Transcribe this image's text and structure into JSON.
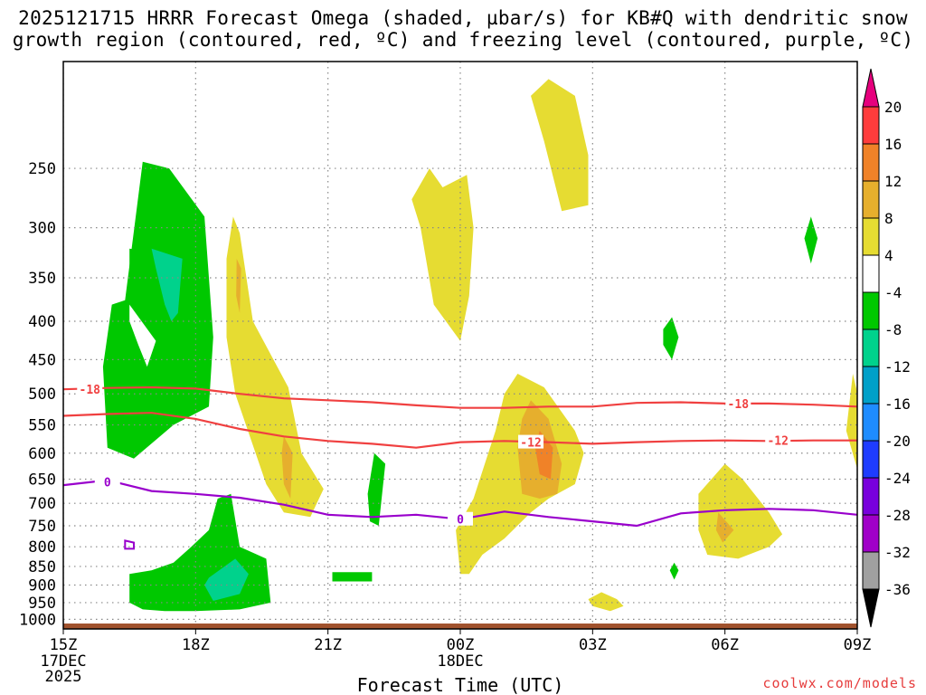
{
  "title": {
    "line1": "2025121715 HRRR Forecast Omega (shaded, µbar/s) for KB#Q with dendritic snow",
    "line2": "growth region (contoured, red, ºC) and freezing level (contoured, purple, ºC)"
  },
  "credit": "coolwx.com/models",
  "colors": {
    "frame": "#000000",
    "grid": "#888888",
    "ground": "#a0522d",
    "dendritic_contour": "#f04040",
    "freezing_contour": "#9900cc"
  },
  "chart_data": {
    "type": "heatmap",
    "xlabel": "Forecast Time (UTC)",
    "ylabel": "",
    "x_ticks": [
      {
        "hours": 0,
        "label": "15Z",
        "sub": [
          "17DEC",
          "2025"
        ]
      },
      {
        "hours": 3,
        "label": "18Z",
        "sub": []
      },
      {
        "hours": 6,
        "label": "21Z",
        "sub": []
      },
      {
        "hours": 9,
        "label": "00Z",
        "sub": [
          "18DEC"
        ]
      },
      {
        "hours": 12,
        "label": "03Z",
        "sub": []
      },
      {
        "hours": 15,
        "label": "06Z",
        "sub": []
      },
      {
        "hours": 18,
        "label": "09Z",
        "sub": []
      }
    ],
    "xlim_hours": [
      0,
      18
    ],
    "y_ticks": [
      250,
      300,
      350,
      400,
      450,
      500,
      550,
      600,
      650,
      700,
      750,
      800,
      850,
      900,
      950,
      1000
    ],
    "ylim_hPa": [
      1030,
      180
    ],
    "y_scale": "log-pressure",
    "grid": true,
    "colorbar": {
      "labels": [
        "20",
        "16",
        "12",
        "8",
        "4",
        "-4",
        "-8",
        "-12",
        "-16",
        "-20",
        "-24",
        "-28",
        "-32",
        "-36"
      ],
      "bins": [
        {
          "from": 16,
          "to": 20,
          "color": "#ff3c3c"
        },
        {
          "from": 12,
          "to": 16,
          "color": "#f08228"
        },
        {
          "from": 8,
          "to": 12,
          "color": "#e6af2d"
        },
        {
          "from": 4,
          "to": 8,
          "color": "#e6dc32"
        },
        {
          "from": -4,
          "to": 4,
          "color": "#ffffff"
        },
        {
          "from": -8,
          "to": -4,
          "color": "#00c800"
        },
        {
          "from": -12,
          "to": -8,
          "color": "#00d28c"
        },
        {
          "from": -16,
          "to": -12,
          "color": "#00a0c8"
        },
        {
          "from": -20,
          "to": -16,
          "color": "#1e8cff"
        },
        {
          "from": -24,
          "to": -20,
          "color": "#1e3cff"
        },
        {
          "from": -28,
          "to": -24,
          "color": "#7800dc"
        },
        {
          "from": -32,
          "to": -28,
          "color": "#a000c8"
        },
        {
          "from": -36,
          "to": -32,
          "color": "#a0a0a0"
        }
      ],
      "over_color": "#e6007d",
      "under_color": "#000000"
    },
    "contours": [
      {
        "value": -18,
        "label": "-18",
        "color": "#f04040",
        "points": [
          [
            0,
            493
          ],
          [
            1,
            491
          ],
          [
            2,
            490
          ],
          [
            3,
            492
          ],
          [
            4,
            500
          ],
          [
            5,
            507
          ],
          [
            6,
            510
          ],
          [
            7,
            513
          ],
          [
            8,
            518
          ],
          [
            9,
            522
          ],
          [
            10,
            522
          ],
          [
            11,
            520
          ],
          [
            12,
            520
          ],
          [
            13,
            514
          ],
          [
            14,
            513
          ],
          [
            15,
            515
          ],
          [
            16,
            515
          ],
          [
            17,
            517
          ],
          [
            18,
            520
          ]
        ],
        "label_at": [
          [
            0.6,
            493
          ],
          [
            15.3,
            515
          ]
        ]
      },
      {
        "value": -12,
        "label": "-12",
        "color": "#f04040",
        "points": [
          [
            0,
            535
          ],
          [
            1,
            532
          ],
          [
            2,
            530
          ],
          [
            3,
            540
          ],
          [
            4,
            557
          ],
          [
            5,
            570
          ],
          [
            6,
            578
          ],
          [
            7,
            583
          ],
          [
            8,
            590
          ],
          [
            9,
            580
          ],
          [
            10,
            578
          ],
          [
            11,
            580
          ],
          [
            12,
            583
          ],
          [
            13,
            580
          ],
          [
            14,
            578
          ],
          [
            15,
            577
          ],
          [
            16,
            578
          ],
          [
            17,
            577
          ],
          [
            18,
            577
          ]
        ],
        "label_at": [
          [
            10.6,
            580
          ],
          [
            16.2,
            577
          ]
        ]
      },
      {
        "value": 0,
        "label": "0",
        "color": "#9900cc",
        "points": [
          [
            0,
            662
          ],
          [
            1,
            652
          ],
          [
            2,
            674
          ],
          [
            3,
            680
          ],
          [
            4,
            688
          ],
          [
            5,
            703
          ],
          [
            6,
            725
          ],
          [
            7,
            730
          ],
          [
            8,
            725
          ],
          [
            9,
            735
          ],
          [
            10,
            718
          ],
          [
            11,
            730
          ],
          [
            12,
            740
          ],
          [
            13,
            750
          ],
          [
            14,
            722
          ],
          [
            15,
            715
          ],
          [
            16,
            712
          ],
          [
            17,
            715
          ],
          [
            18,
            725
          ]
        ],
        "label_at": [
          [
            1,
            655
          ],
          [
            9,
            735
          ]
        ]
      }
    ],
    "omega_regions": [
      {
        "value": -6,
        "color": "#00c800",
        "points": [
          [
            1.4,
            375
          ],
          [
            1.8,
            245
          ],
          [
            2.4,
            250
          ],
          [
            3.2,
            290
          ],
          [
            3.4,
            420
          ],
          [
            3.3,
            520
          ],
          [
            2.5,
            550
          ],
          [
            1.6,
            610
          ],
          [
            1.0,
            590
          ],
          [
            0.9,
            460
          ],
          [
            1.1,
            380
          ]
        ]
      },
      {
        "value": -6,
        "color": "#00c800",
        "points": [
          [
            1.5,
            320
          ],
          [
            3.0,
            330
          ],
          [
            2.9,
            450
          ],
          [
            2.5,
            470
          ],
          [
            2.2,
            440
          ],
          [
            1.9,
            430
          ],
          [
            1.6,
            420
          ],
          [
            1.5,
            380
          ]
        ]
      },
      {
        "value": -10,
        "color": "#00d28c",
        "points": [
          [
            2.0,
            320
          ],
          [
            2.7,
            330
          ],
          [
            2.6,
            390
          ],
          [
            2.45,
            400
          ],
          [
            2.3,
            380
          ],
          [
            2.1,
            340
          ]
        ]
      },
      {
        "value": 0,
        "color": "#ffffff",
        "points": [
          [
            1.5,
            380
          ],
          [
            2.1,
            425
          ],
          [
            1.9,
            460
          ],
          [
            1.7,
            430
          ],
          [
            1.5,
            400
          ]
        ]
      },
      {
        "value": -6,
        "color": "#00c800",
        "points": [
          [
            1.5,
            870
          ],
          [
            2.0,
            860
          ],
          [
            2.5,
            840
          ],
          [
            2.9,
            800
          ],
          [
            3.3,
            760
          ],
          [
            3.5,
            690
          ],
          [
            3.8,
            680
          ],
          [
            4.0,
            800
          ],
          [
            4.6,
            830
          ],
          [
            4.7,
            950
          ],
          [
            4.0,
            970
          ],
          [
            3.0,
            975
          ],
          [
            2.3,
            975
          ],
          [
            1.8,
            970
          ],
          [
            1.5,
            950
          ]
        ]
      },
      {
        "value": -10,
        "color": "#00d28c",
        "points": [
          [
            3.3,
            880
          ],
          [
            3.9,
            830
          ],
          [
            4.2,
            870
          ],
          [
            4.0,
            925
          ],
          [
            3.4,
            945
          ],
          [
            3.2,
            900
          ]
        ]
      },
      {
        "value": 6,
        "color": "#e6dc32",
        "points": [
          [
            3.85,
            290
          ],
          [
            4.0,
            305
          ],
          [
            4.3,
            400
          ],
          [
            5.1,
            490
          ],
          [
            5.4,
            600
          ],
          [
            5.9,
            670
          ],
          [
            5.6,
            730
          ],
          [
            5.0,
            720
          ],
          [
            4.6,
            660
          ],
          [
            3.9,
            500
          ],
          [
            3.7,
            420
          ],
          [
            3.7,
            330
          ]
        ]
      },
      {
        "value": 10,
        "color": "#e6af2d",
        "points": [
          [
            3.93,
            330
          ],
          [
            4.03,
            340
          ],
          [
            4.0,
            390
          ],
          [
            3.92,
            370
          ]
        ]
      },
      {
        "value": 10,
        "color": "#e6af2d",
        "points": [
          [
            5.0,
            570
          ],
          [
            5.2,
            600
          ],
          [
            5.15,
            690
          ],
          [
            5.0,
            660
          ],
          [
            4.95,
            600
          ]
        ]
      },
      {
        "value": 6,
        "color": "#e6dc32",
        "points": [
          [
            8.3,
            250
          ],
          [
            8.6,
            265
          ],
          [
            9.15,
            255
          ],
          [
            9.3,
            300
          ],
          [
            9.2,
            370
          ],
          [
            9.0,
            425
          ],
          [
            8.4,
            380
          ],
          [
            8.1,
            300
          ],
          [
            7.9,
            275
          ]
        ]
      },
      {
        "value": 6,
        "color": "#e6dc32",
        "points": [
          [
            11.0,
            190
          ],
          [
            11.6,
            200
          ],
          [
            11.9,
            240
          ],
          [
            11.9,
            280
          ],
          [
            11.3,
            285
          ],
          [
            10.9,
            230
          ],
          [
            10.6,
            200
          ]
        ]
      },
      {
        "value": 6,
        "color": "#e6dc32",
        "points": [
          [
            10.3,
            470
          ],
          [
            10.9,
            490
          ],
          [
            11.6,
            560
          ],
          [
            11.8,
            600
          ],
          [
            11.6,
            660
          ],
          [
            11.0,
            690
          ],
          [
            10.6,
            720
          ],
          [
            10.0,
            780
          ],
          [
            9.5,
            820
          ],
          [
            9.2,
            870
          ],
          [
            9.0,
            870
          ],
          [
            8.9,
            760
          ],
          [
            9.3,
            690
          ],
          [
            9.8,
            560
          ],
          [
            10.0,
            500
          ]
        ]
      },
      {
        "value": 10,
        "color": "#e6af2d",
        "points": [
          [
            10.6,
            510
          ],
          [
            11.0,
            540
          ],
          [
            11.3,
            620
          ],
          [
            11.2,
            680
          ],
          [
            10.8,
            690
          ],
          [
            10.4,
            680
          ],
          [
            10.3,
            590
          ],
          [
            10.4,
            540
          ]
        ]
      },
      {
        "value": 14,
        "color": "#f08228",
        "points": [
          [
            10.8,
            560
          ],
          [
            11.1,
            590
          ],
          [
            11.05,
            650
          ],
          [
            10.8,
            640
          ],
          [
            10.7,
            590
          ]
        ]
      },
      {
        "value": -6,
        "color": "#00c800",
        "points": [
          [
            7.05,
            600
          ],
          [
            7.3,
            620
          ],
          [
            7.15,
            750
          ],
          [
            6.95,
            740
          ],
          [
            6.9,
            680
          ]
        ]
      },
      {
        "value": -6,
        "color": "#00c800",
        "points": [
          [
            6.1,
            865
          ],
          [
            7.0,
            865
          ],
          [
            7.0,
            890
          ],
          [
            6.1,
            890
          ]
        ]
      },
      {
        "value": 6,
        "color": "#e6dc32",
        "points": [
          [
            15.0,
            620
          ],
          [
            15.4,
            650
          ],
          [
            16.0,
            720
          ],
          [
            16.3,
            770
          ],
          [
            16.0,
            800
          ],
          [
            15.3,
            830
          ],
          [
            14.6,
            820
          ],
          [
            14.4,
            760
          ],
          [
            14.4,
            680
          ]
        ]
      },
      {
        "value": 10,
        "color": "#e6af2d",
        "points": [
          [
            14.85,
            720
          ],
          [
            15.2,
            760
          ],
          [
            14.95,
            790
          ],
          [
            14.8,
            760
          ]
        ]
      },
      {
        "value": 6,
        "color": "#e6dc32",
        "points": [
          [
            12.2,
            920
          ],
          [
            12.55,
            940
          ],
          [
            12.7,
            960
          ],
          [
            12.4,
            975
          ],
          [
            12.0,
            960
          ],
          [
            11.9,
            940
          ]
        ]
      },
      {
        "value": -6,
        "color": "#00c800",
        "points": [
          [
            13.6,
            410
          ],
          [
            13.8,
            395
          ],
          [
            13.95,
            420
          ],
          [
            13.8,
            450
          ],
          [
            13.6,
            430
          ]
        ]
      },
      {
        "value": -6,
        "color": "#00c800",
        "points": [
          [
            16.95,
            290
          ],
          [
            17.1,
            310
          ],
          [
            16.95,
            335
          ],
          [
            16.8,
            310
          ]
        ]
      },
      {
        "value": -6,
        "color": "#00c800",
        "points": [
          [
            13.85,
            840
          ],
          [
            13.95,
            860
          ],
          [
            13.85,
            885
          ],
          [
            13.75,
            860
          ]
        ]
      },
      {
        "value": 6,
        "color": "#e6dc32",
        "points": [
          [
            17.9,
            470
          ],
          [
            18.2,
            560
          ],
          [
            18.0,
            630
          ],
          [
            17.75,
            560
          ]
        ]
      }
    ],
    "freezing_loop": [
      [
        1.4,
        785
      ],
      [
        1.6,
        790
      ],
      [
        1.6,
        805
      ],
      [
        1.4,
        805
      ]
    ]
  }
}
